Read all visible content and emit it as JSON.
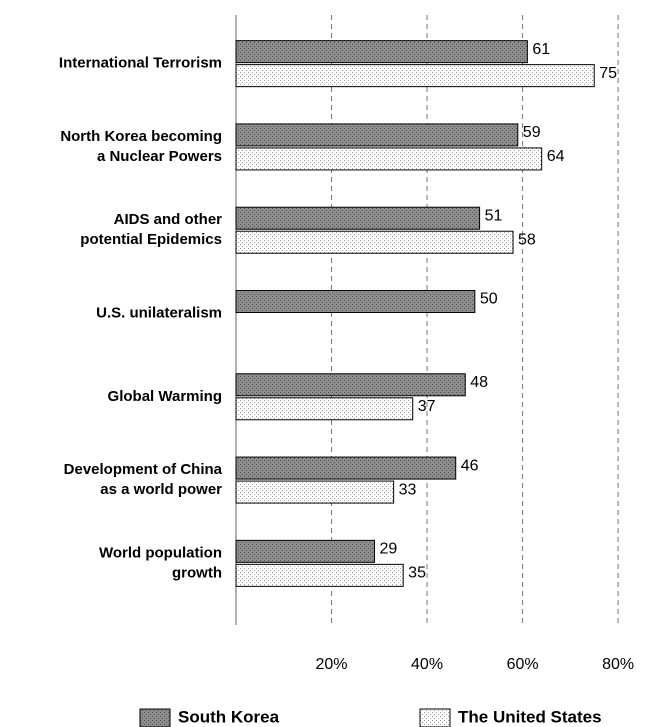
{
  "chart_data": {
    "type": "bar",
    "orientation": "horizontal",
    "categories": [
      "International Terrorism",
      "North Korea becoming\na Nuclear Powers",
      "AIDS and other\npotential Epidemics",
      "U.S. unilateralism",
      "Global Warming",
      "Development of China\nas a world power",
      "World population\ngrowth"
    ],
    "series": [
      {
        "name": "South Korea",
        "color": "#8c8c8c",
        "values": [
          61,
          59,
          51,
          50,
          48,
          46,
          29
        ]
      },
      {
        "name": "The United States",
        "color": "#ffffff",
        "values": [
          75,
          64,
          58,
          null,
          37,
          33,
          35
        ]
      }
    ],
    "xlim": [
      0,
      85
    ],
    "xticks": [
      {
        "value": 20,
        "label": "20%"
      },
      {
        "value": 40,
        "label": "40%"
      },
      {
        "value": 60,
        "label": "60%"
      },
      {
        "value": 80,
        "label": "80%"
      }
    ],
    "grid": true,
    "legend": "bottom"
  }
}
